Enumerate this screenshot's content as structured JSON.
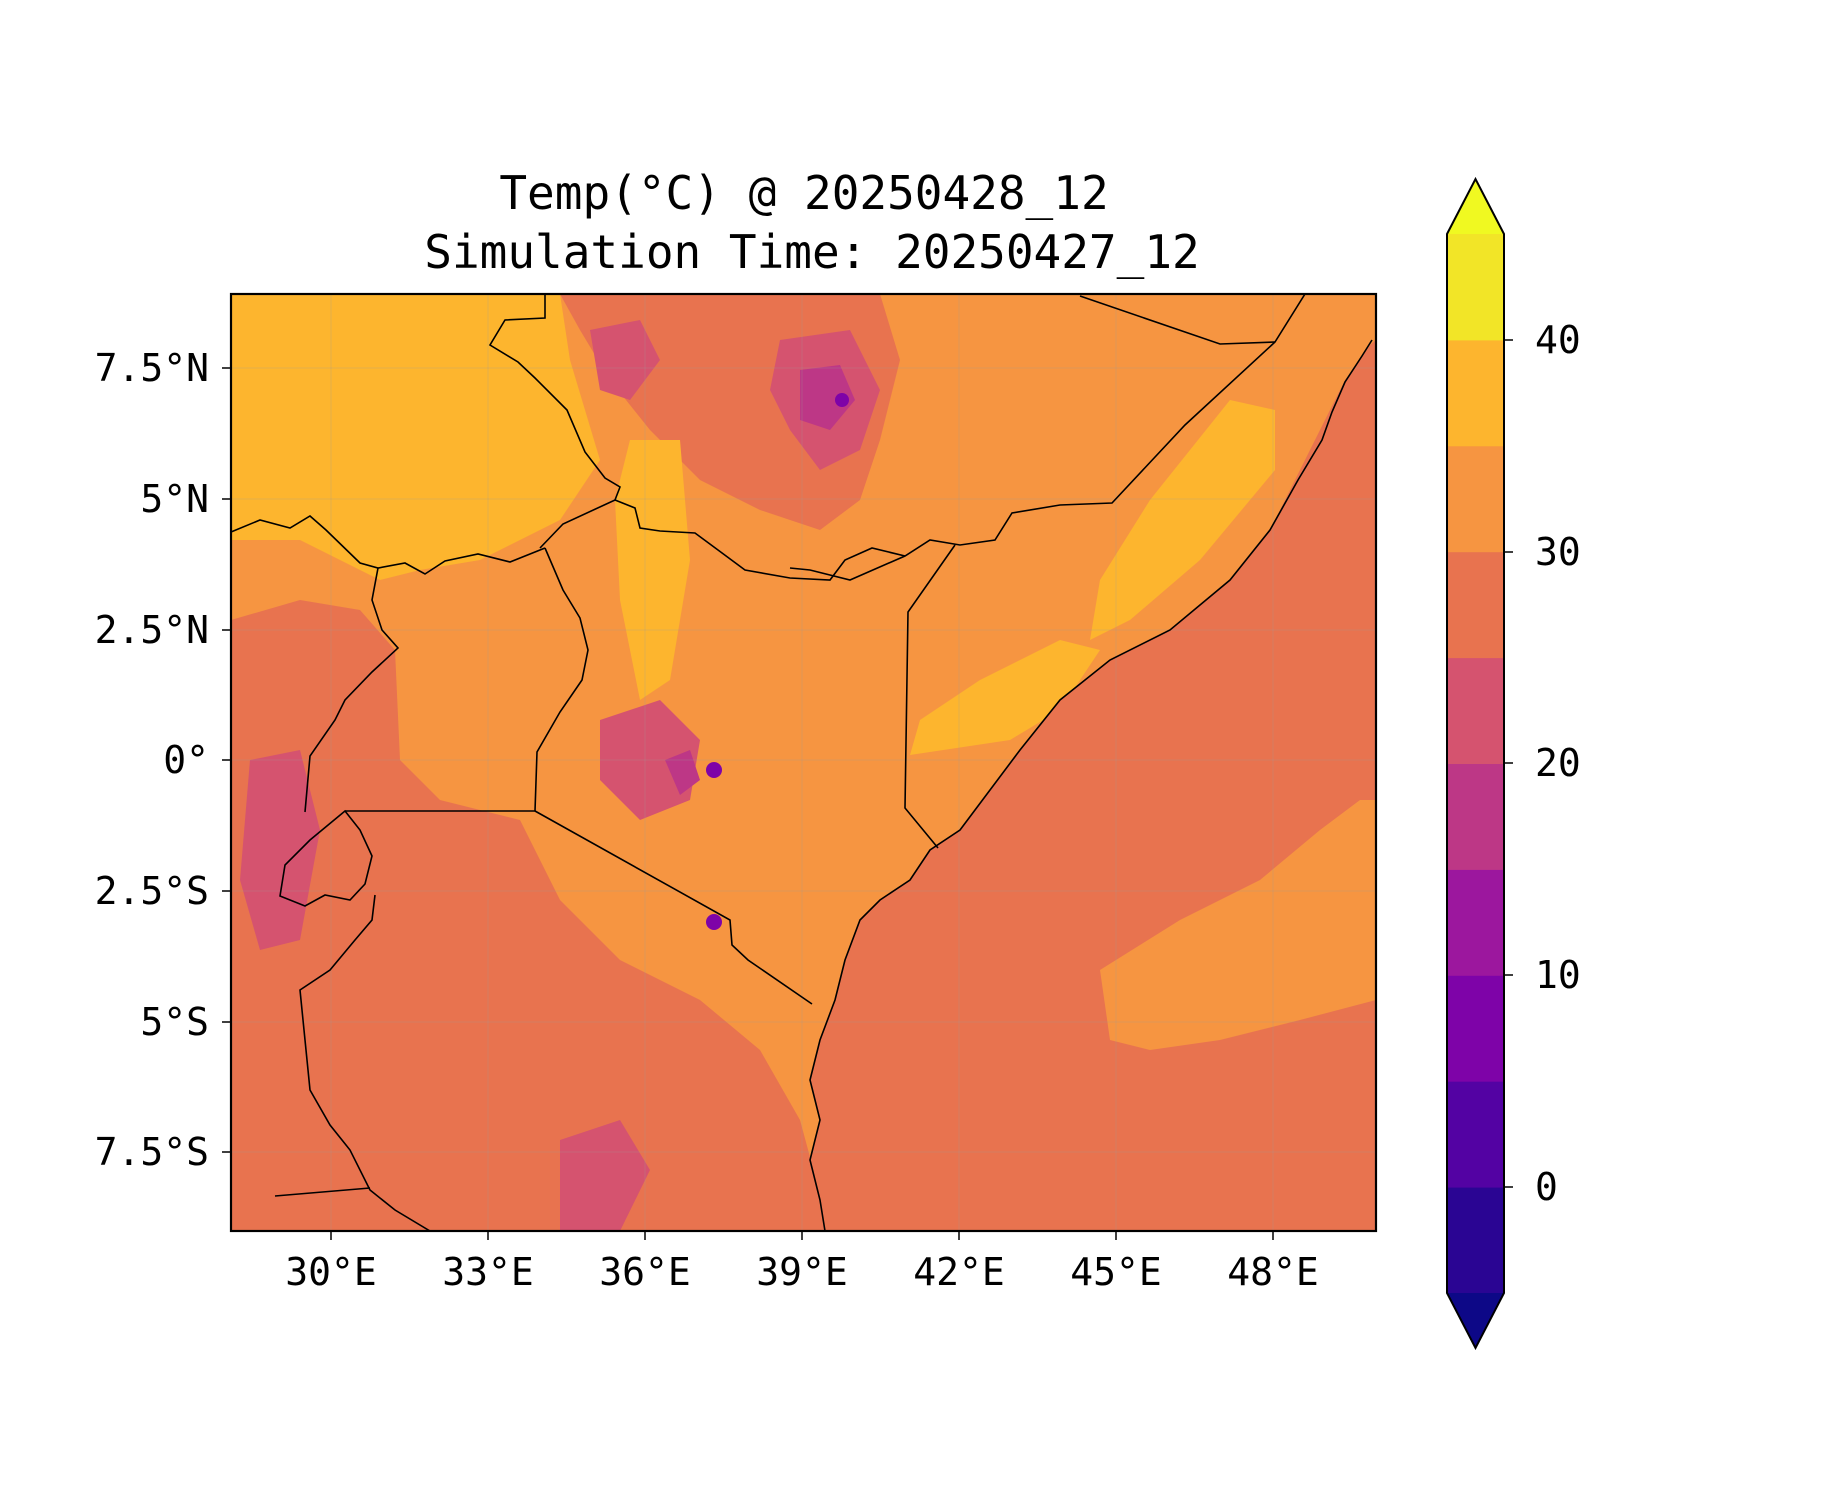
{
  "title": {
    "line1": "Temp(°C) @ 20250428_12",
    "line2": "Simulation Time: 20250427_12"
  },
  "map": {
    "lon_range": [
      27.0,
      49.0
    ],
    "lat_range": [
      -9.0,
      9.0
    ],
    "x_ticks": [
      "30°E",
      "33°E",
      "36°E",
      "39°E",
      "42°E",
      "45°E",
      "48°E"
    ],
    "y_ticks": [
      "7.5°N",
      "5°N",
      "2.5°N",
      "0°",
      "2.5°S",
      "5°S",
      "7.5°S"
    ],
    "grid": true
  },
  "colorbar": {
    "ticks": [
      "0",
      "10",
      "20",
      "30",
      "40"
    ],
    "levels": [
      -5,
      0,
      5,
      10,
      15,
      20,
      25,
      30,
      35,
      40,
      45
    ],
    "colors": [
      "#0d0887",
      "#2a0593",
      "#5302a3",
      "#7e03a8",
      "#9c179e",
      "#bd3786",
      "#d5536f",
      "#e8734f",
      "#f69541",
      "#fdb52e",
      "#f2e527",
      "#f0f921"
    ],
    "extend": "both"
  },
  "chart_data": {
    "type": "heatmap",
    "variable": "Temp(°C)",
    "valid_time": "20250428_12",
    "simulation_time": "20250427_12",
    "xlim": [
      27.0,
      49.0
    ],
    "ylim": [
      -9.0,
      9.0
    ],
    "clim": [
      -5,
      45
    ]
  }
}
